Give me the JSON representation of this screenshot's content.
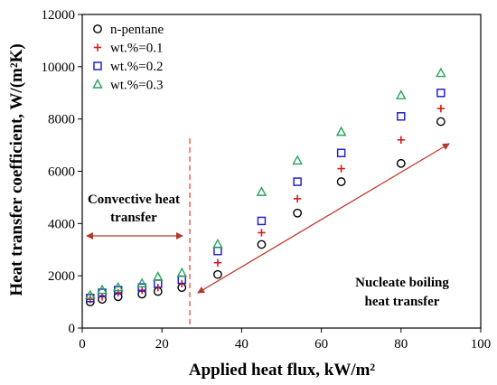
{
  "chart_data": {
    "type": "scatter",
    "xlabel": "Applied heat flux, kW/m²",
    "ylabel": "Heat transfer coefficient, W/(m²K)",
    "xlim": [
      0,
      100
    ],
    "ylim": [
      0,
      12000
    ],
    "x_ticks": [
      "0",
      "20",
      "40",
      "60",
      "80",
      "100"
    ],
    "y_ticks": [
      "0",
      "2000",
      "4000",
      "6000",
      "8000",
      "10000",
      "12000"
    ],
    "grid": false,
    "legend_position": "top-left",
    "series": [
      {
        "name": "n-pentane",
        "marker": "circle",
        "color": "#000000",
        "points": [
          [
            2,
            1000
          ],
          [
            5,
            1100
          ],
          [
            9,
            1200
          ],
          [
            15,
            1300
          ],
          [
            19,
            1400
          ],
          [
            25,
            1550
          ],
          [
            34,
            2050
          ],
          [
            45,
            3200
          ],
          [
            54,
            4400
          ],
          [
            65,
            5600
          ],
          [
            80,
            6300
          ],
          [
            90,
            7900
          ]
        ]
      },
      {
        "name": "wt.%=0.1",
        "marker": "plus",
        "color": "#d81b1b",
        "points": [
          [
            2,
            1100
          ],
          [
            5,
            1200
          ],
          [
            9,
            1350
          ],
          [
            15,
            1450
          ],
          [
            19,
            1550
          ],
          [
            25,
            1700
          ],
          [
            34,
            2500
          ],
          [
            45,
            3650
          ],
          [
            54,
            4950
          ],
          [
            65,
            6100
          ],
          [
            80,
            7200
          ],
          [
            90,
            8400
          ]
        ]
      },
      {
        "name": "wt.%=0.2",
        "marker": "square",
        "color": "#2323c8",
        "points": [
          [
            2,
            1150
          ],
          [
            5,
            1350
          ],
          [
            9,
            1450
          ],
          [
            15,
            1550
          ],
          [
            19,
            1700
          ],
          [
            25,
            1850
          ],
          [
            34,
            2950
          ],
          [
            45,
            4100
          ],
          [
            54,
            5600
          ],
          [
            65,
            6700
          ],
          [
            80,
            8100
          ],
          [
            90,
            9000
          ]
        ]
      },
      {
        "name": "wt.%=0.3",
        "marker": "triangle",
        "color": "#2aa35a",
        "points": [
          [
            2,
            1250
          ],
          [
            5,
            1450
          ],
          [
            9,
            1550
          ],
          [
            15,
            1700
          ],
          [
            19,
            1950
          ],
          [
            25,
            2100
          ],
          [
            34,
            3200
          ],
          [
            45,
            5200
          ],
          [
            54,
            6400
          ],
          [
            65,
            7500
          ],
          [
            80,
            8900
          ],
          [
            90,
            9750
          ]
        ]
      }
    ],
    "annotations": {
      "convective_line1": "Convective heat",
      "convective_line2": "transfer",
      "nucleate_line1": "Nucleate boiling",
      "nucleate_line2": "heat transfer"
    },
    "divider_x": 27,
    "colors": {
      "convective_arrow": "#b03a2e",
      "nucleate_arrow": "#c0392b",
      "divider": "#e74c3c"
    }
  }
}
